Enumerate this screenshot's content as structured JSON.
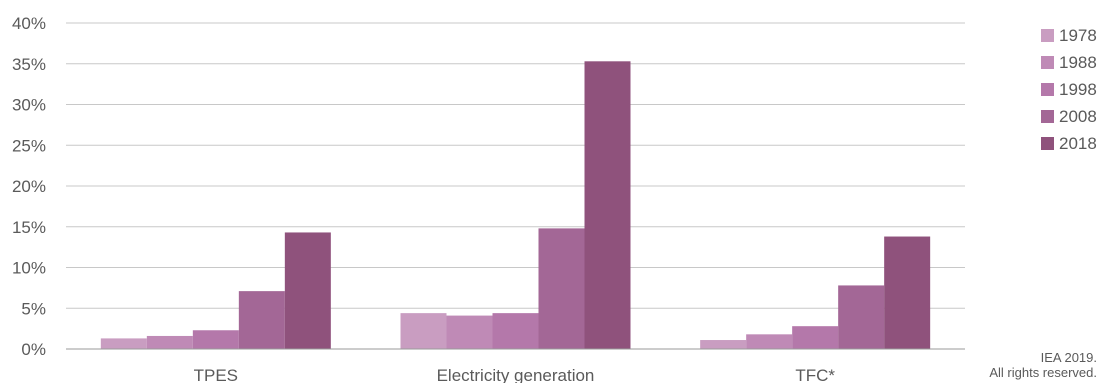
{
  "chart_data": {
    "type": "bar",
    "categories": [
      "TPES",
      "Electricity generation",
      "TFC*"
    ],
    "series": [
      {
        "name": "1978",
        "values": [
          1.3,
          4.4,
          1.1
        ],
        "color": "#c99dc1"
      },
      {
        "name": "1988",
        "values": [
          1.6,
          4.1,
          1.8
        ],
        "color": "#bf8ab6"
      },
      {
        "name": "1998",
        "values": [
          2.3,
          4.4,
          2.8
        ],
        "color": "#b478aa"
      },
      {
        "name": "2008",
        "values": [
          7.1,
          14.8,
          7.8
        ],
        "color": "#a36796"
      },
      {
        "name": "2018",
        "values": [
          14.3,
          35.3,
          13.8
        ],
        "color": "#8f527c"
      }
    ],
    "yticks": [
      "0%",
      "5%",
      "10%",
      "15%",
      "20%",
      "25%",
      "30%",
      "35%",
      "40%"
    ],
    "ylim": [
      0,
      40
    ],
    "grid": true,
    "legend_position": "right"
  },
  "credit": {
    "line1": "IEA 2019.",
    "line2": "All rights reserved."
  }
}
